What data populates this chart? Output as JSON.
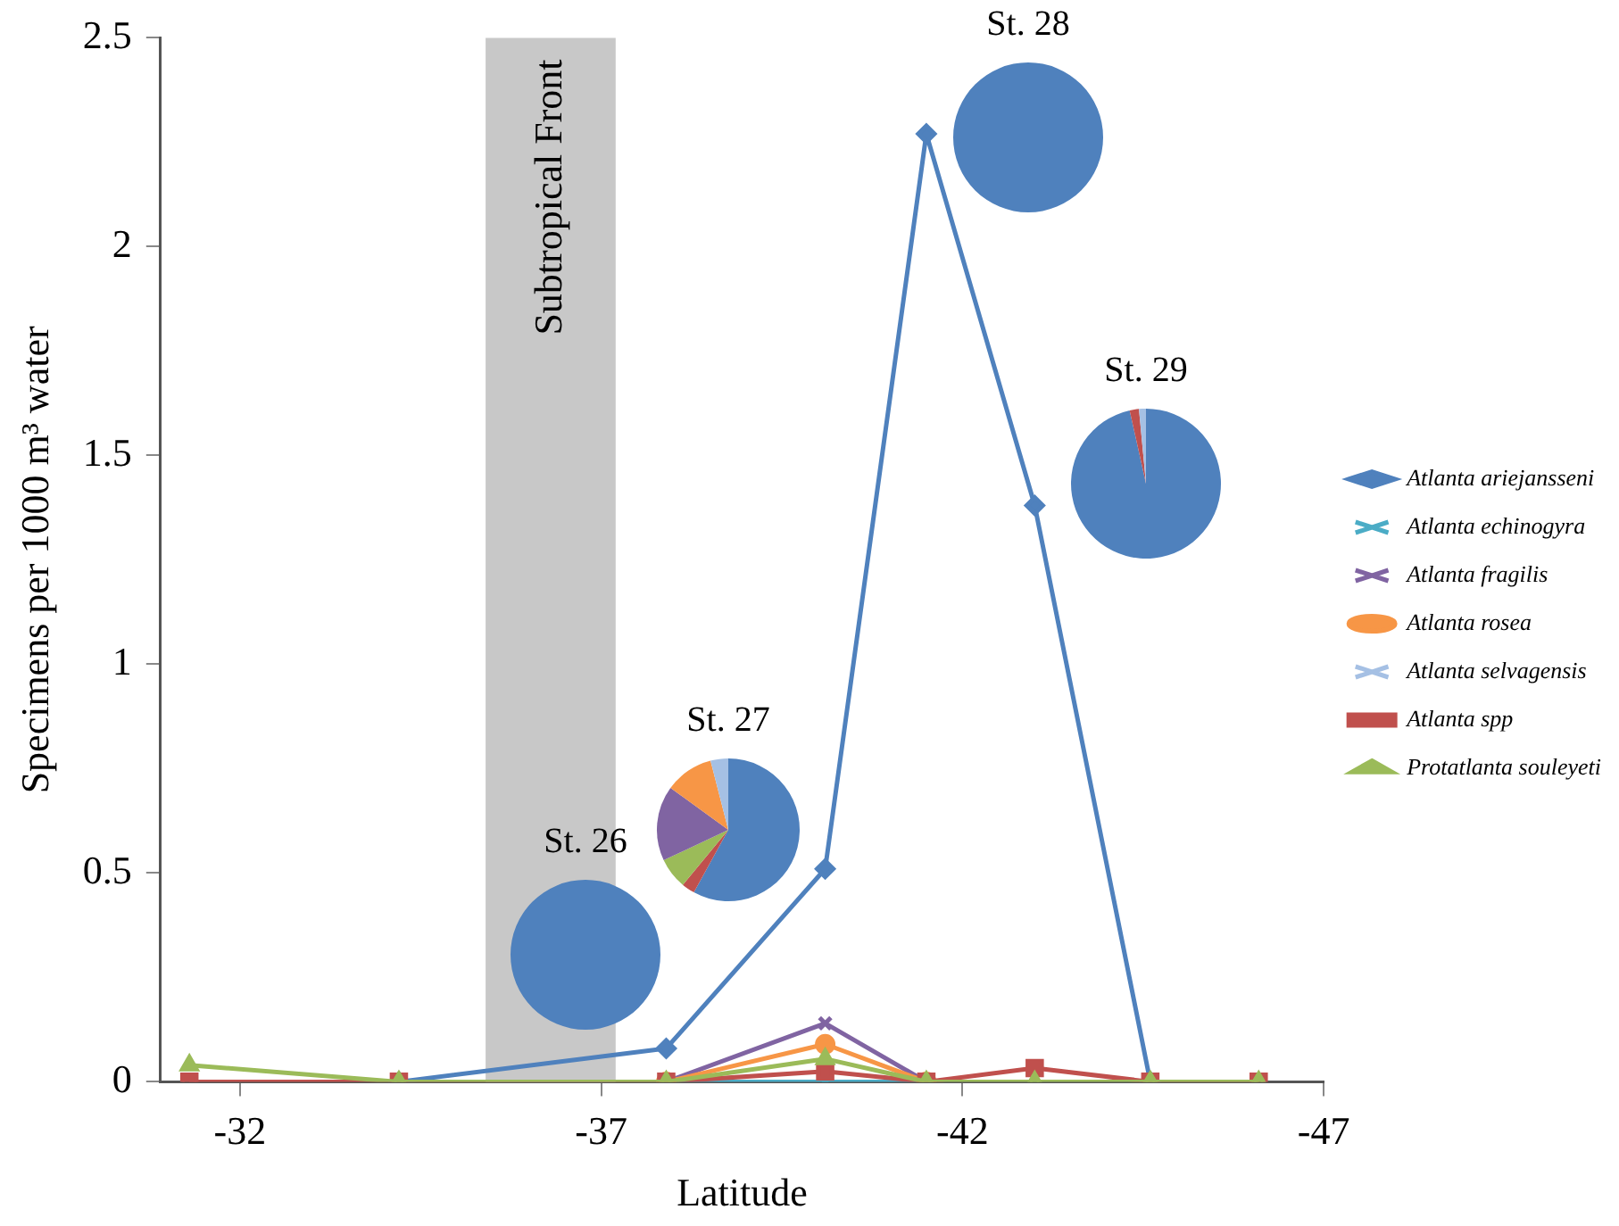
{
  "chart_data": [
    {
      "type": "line",
      "xlabel": "Latitude",
      "ylabel": "Specimens per 1000 m³ water",
      "x": [
        -31.3,
        -34.2,
        -37.9,
        -40.1,
        -41.5,
        -43.0,
        -44.6,
        -46.1
      ],
      "series": [
        {
          "name": "Atlanta ariejansseni",
          "color": "#4f81bd",
          "marker": "diamond",
          "values": [
            null,
            0,
            0.08,
            0.51,
            2.27,
            1.38,
            0,
            null
          ]
        },
        {
          "name": "Atlanta echinogyra",
          "color": "#4bacc6",
          "marker": "cross",
          "values": [
            null,
            null,
            0,
            0,
            0,
            null,
            null,
            null
          ]
        },
        {
          "name": "Atlanta fragilis",
          "color": "#8064a2",
          "marker": "cross",
          "values": [
            null,
            null,
            0,
            0.14,
            0,
            null,
            null,
            null
          ]
        },
        {
          "name": "Atlanta rosea",
          "color": "#f79646",
          "marker": "circle",
          "values": [
            null,
            null,
            0,
            0.09,
            0,
            null,
            null,
            null
          ]
        },
        {
          "name": "Atlanta selvagensis",
          "color": "#a5c0e4",
          "marker": "cross",
          "values": [
            null,
            null,
            null,
            null,
            null,
            null,
            null,
            null
          ]
        },
        {
          "name": "Atlanta spp",
          "color": "#c0504d",
          "marker": "square",
          "values": [
            0,
            0,
            0,
            0.025,
            0,
            0.033,
            0,
            0
          ]
        },
        {
          "name": "Protatlanta souleyeti",
          "color": "#9bbb59",
          "marker": "triangle",
          "values": [
            0.04,
            0,
            0,
            0.055,
            0,
            0,
            0,
            0
          ]
        }
      ],
      "xlim": [
        -30.9,
        -47
      ],
      "xticks": [
        -32,
        -37,
        -42,
        -47
      ],
      "ylim": [
        0,
        2.5
      ],
      "yticks": [
        0,
        0.5,
        1,
        1.5,
        2,
        2.5
      ],
      "bands": [
        {
          "axis": "x",
          "from": -35.4,
          "to": -37.2,
          "label": "Subtropical Front",
          "color": "#c8c8c8"
        }
      ],
      "grid": false,
      "legend": "right"
    },
    {
      "type": "pie",
      "title": "St. 26",
      "categories": [
        null
      ],
      "values": [
        100
      ],
      "colors": [
        "#4f81bd"
      ]
    },
    {
      "type": "pie",
      "title": "St. 27",
      "categories": [
        null,
        null,
        null,
        null,
        null,
        null
      ],
      "values": [
        58,
        3,
        7,
        17,
        11,
        4
      ],
      "colors": [
        "#4f81bd",
        "#c0504d",
        "#9bbb59",
        "#8064a2",
        "#f79646",
        "#a5c0e4"
      ]
    },
    {
      "type": "pie",
      "title": "St. 28",
      "categories": [
        null
      ],
      "values": [
        100
      ],
      "colors": [
        "#4f81bd"
      ]
    },
    {
      "type": "pie",
      "title": "St. 29",
      "categories": [
        null,
        null,
        null
      ],
      "values": [
        96.5,
        2,
        1.5
      ],
      "colors": [
        "#4f81bd",
        "#c0504d",
        "#a5c0e4"
      ]
    }
  ]
}
